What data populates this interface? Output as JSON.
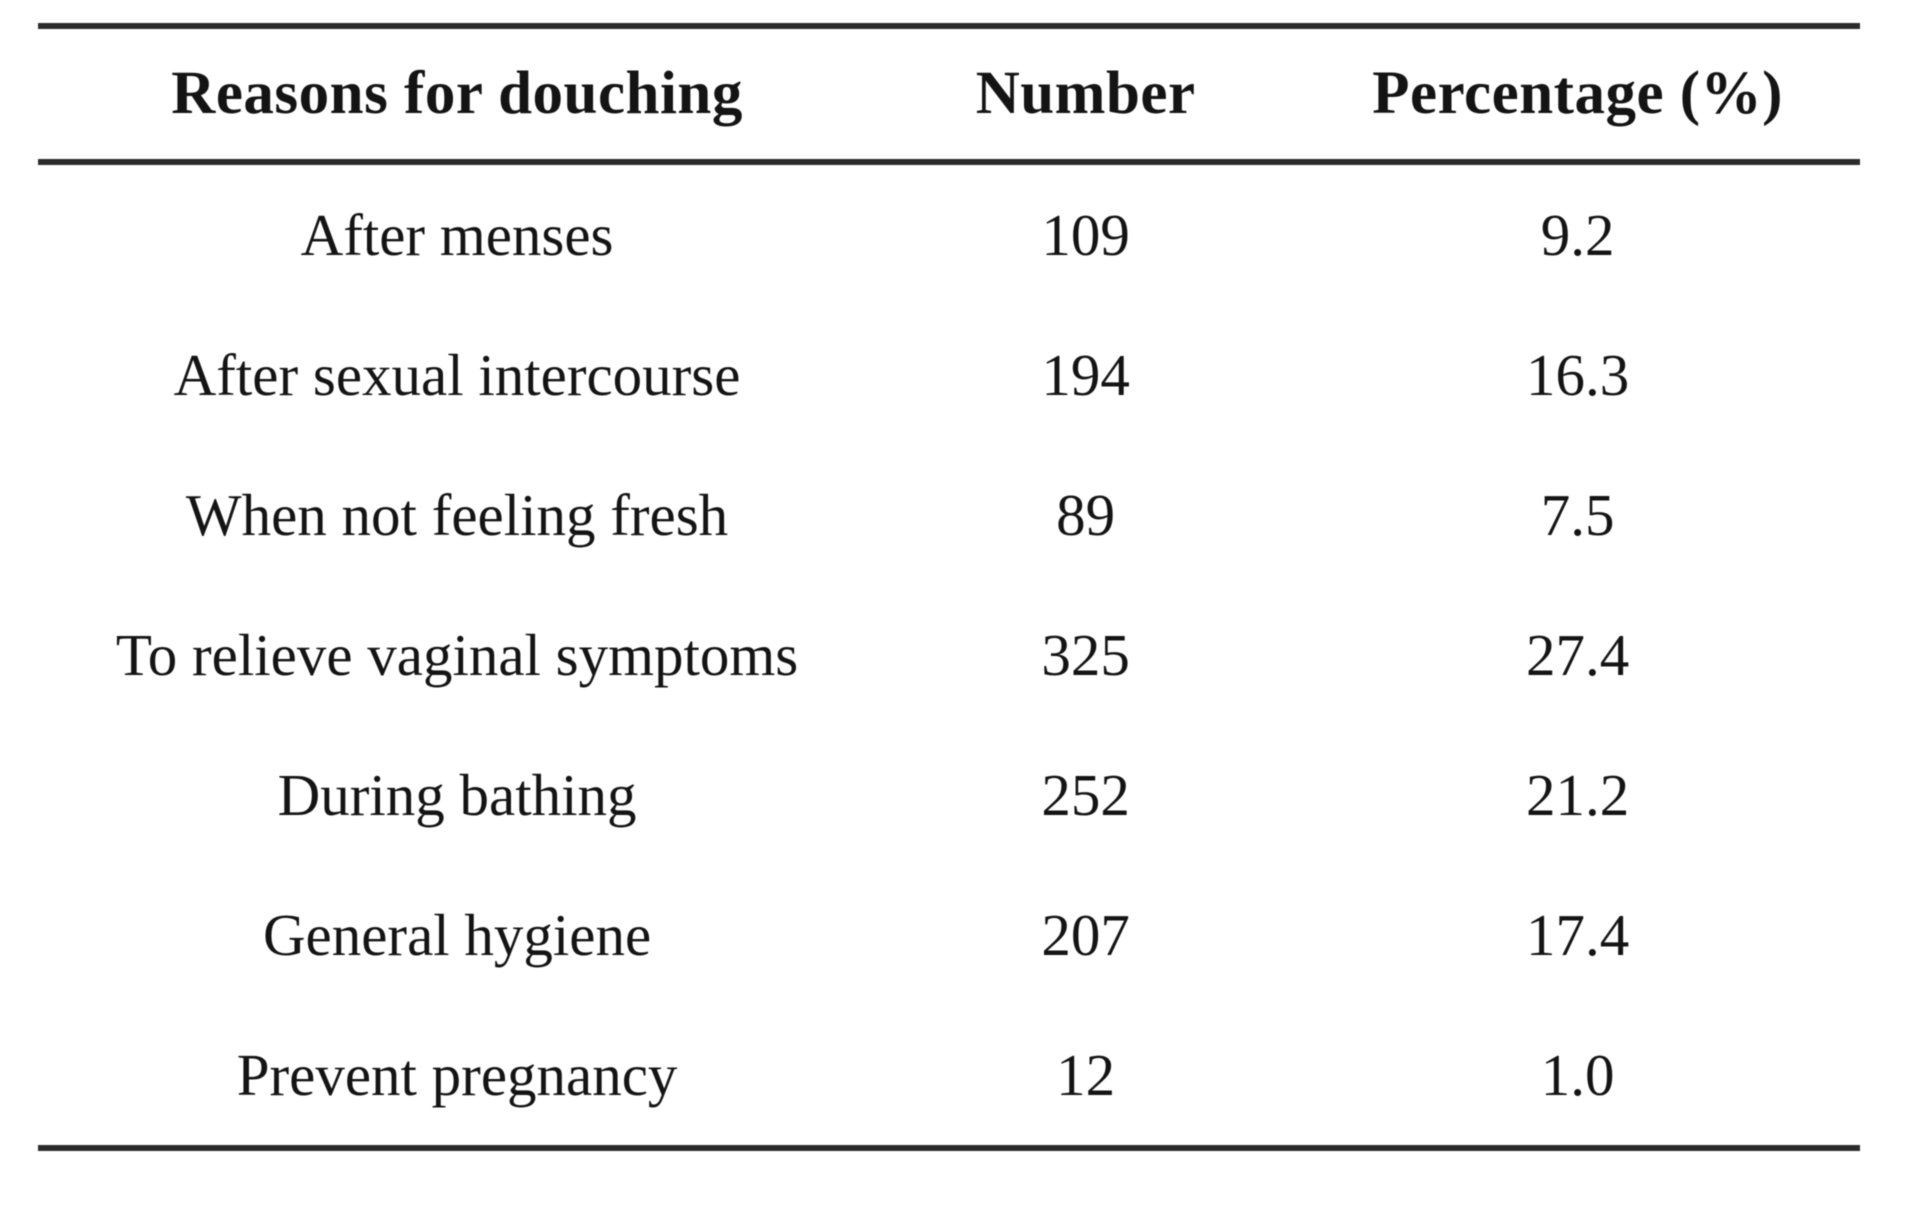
{
  "table": {
    "headers": [
      "Reasons for douching",
      "Number",
      "Percentage (%)"
    ],
    "rows": [
      [
        "After menses",
        "109",
        "9.2"
      ],
      [
        "After sexual intercourse",
        "194",
        "16.3"
      ],
      [
        "When not feeling fresh",
        "89",
        "7.5"
      ],
      [
        "To relieve vaginal symptoms",
        "325",
        "27.4"
      ],
      [
        "During bathing",
        "252",
        "21.2"
      ],
      [
        "General hygiene",
        "207",
        "17.4"
      ],
      [
        "Prevent pregnancy",
        "12",
        "1.0"
      ]
    ]
  },
  "colors": {
    "text": "#141414",
    "rule": "#2c2c2c",
    "background": "#ffffff"
  }
}
